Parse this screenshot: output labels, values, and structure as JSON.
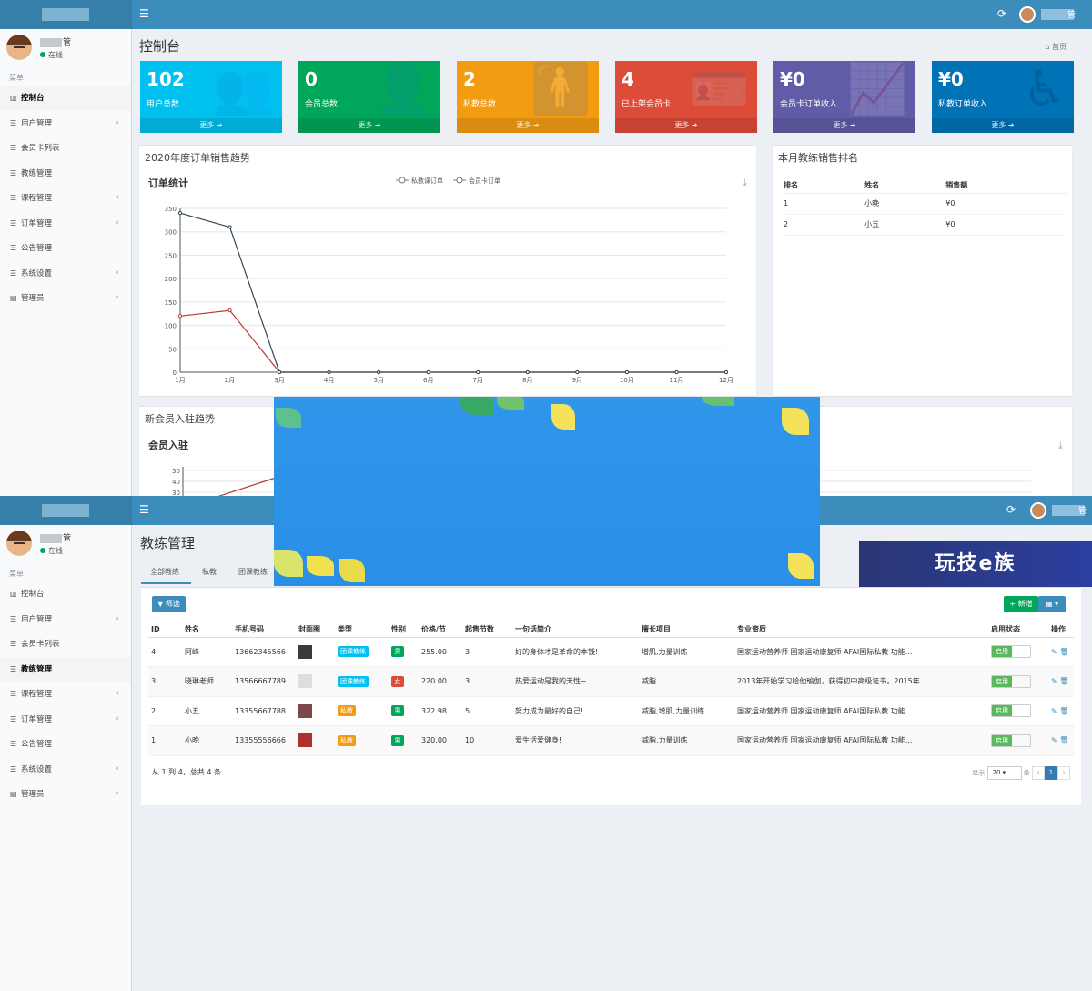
{
  "top": {
    "header": {
      "menu_icon": "hamburger-icon",
      "refresh_icon": "refresh-icon",
      "user_suffix": "管"
    },
    "sidebar": {
      "user_suffix": "管",
      "status": "在线",
      "section": "菜单",
      "items": [
        {
          "label": "控制台",
          "icon": "bar-chart-icon",
          "chevron": false,
          "active": true
        },
        {
          "label": "用户管理",
          "icon": "list-icon",
          "chevron": true
        },
        {
          "label": "会员卡列表",
          "icon": "list-icon",
          "chevron": false
        },
        {
          "label": "教练管理",
          "icon": "list-icon",
          "chevron": false
        },
        {
          "label": "课程管理",
          "icon": "list-icon",
          "chevron": true
        },
        {
          "label": "订单管理",
          "icon": "list-icon",
          "chevron": true
        },
        {
          "label": "公告管理",
          "icon": "list-icon",
          "chevron": false
        },
        {
          "label": "系统设置",
          "icon": "list-icon",
          "chevron": true
        },
        {
          "label": "管理员",
          "icon": "table-icon",
          "chevron": true
        }
      ]
    },
    "title": "控制台",
    "breadcrumb": "首页",
    "info_boxes": [
      {
        "value": "102",
        "label": "用户总数",
        "more": "更多",
        "color": "#00c0ef",
        "icon": "users-icon"
      },
      {
        "value": "0",
        "label": "会员总数",
        "more": "更多",
        "color": "#00a65a",
        "icon": "user-plus-icon"
      },
      {
        "value": "2",
        "label": "私教总数",
        "more": "更多",
        "color": "#f39c12",
        "icon": "person-icon"
      },
      {
        "value": "4",
        "label": "已上架会员卡",
        "more": "更多",
        "color": "#dd4b39",
        "icon": "id-card-icon"
      },
      {
        "value": "¥0",
        "label": "会员卡订单收入",
        "more": "更多",
        "color": "#605ca8",
        "icon": "area-chart-icon"
      },
      {
        "value": "¥0",
        "label": "私教订单收入",
        "more": "更多",
        "color": "#0073b7",
        "icon": "accessibility-icon"
      }
    ],
    "order_panel": {
      "title": "2020年度订单销售趋势",
      "subtitle": "订单统计"
    },
    "rank_panel": {
      "title": "本月教练销售排名",
      "headers": [
        "排名",
        "姓名",
        "销售额"
      ],
      "rows": [
        [
          "1",
          "小晚",
          "¥0"
        ],
        [
          "2",
          "小五",
          "¥0"
        ]
      ]
    },
    "member_panel": {
      "title": "新会员入驻趋势",
      "subtitle": "会员入驻"
    }
  },
  "chart_data": [
    {
      "type": "line",
      "title": "订单统计",
      "categories": [
        "1月",
        "2月",
        "3月",
        "4月",
        "5月",
        "6月",
        "7月",
        "8月",
        "9月",
        "10月",
        "11月",
        "12月"
      ],
      "series": [
        {
          "name": "私教课订单",
          "color": "#c23531",
          "values": [
            120,
            132,
            0,
            0,
            0,
            0,
            0,
            0,
            0,
            0,
            0,
            0
          ]
        },
        {
          "name": "会员卡订单",
          "color": "#2f4554",
          "values": [
            340,
            310,
            0,
            0,
            0,
            0,
            0,
            0,
            0,
            0,
            0,
            0
          ]
        }
      ],
      "yticks": [
        0,
        50,
        100,
        150,
        200,
        250,
        300,
        350
      ],
      "ylim": [
        0,
        350
      ],
      "legend": "top-center"
    },
    {
      "type": "line",
      "title": "会员入驻",
      "yticks": [
        30,
        40,
        50
      ],
      "partially_visible": true
    }
  ],
  "bottom": {
    "header": {
      "menu_icon": "hamburger-icon",
      "refresh_icon": "refresh-icon",
      "user_suffix": "管"
    },
    "title": "教练管理",
    "tabs": [
      "全部教练",
      "私教",
      "团课教练"
    ],
    "toolbar": {
      "filter": "筛选",
      "add": "+ 新增",
      "columns_icon": "grid-icon"
    },
    "table": {
      "headers": [
        "ID",
        "姓名",
        "手机号码",
        "封面图",
        "类型",
        "性别",
        "价格/节",
        "起售节数",
        "一句话简介",
        "擅长项目",
        "专业资质",
        "启用状态",
        "操作"
      ],
      "rows": [
        {
          "id": "4",
          "name": "阿峰",
          "phone": "13662345566",
          "type": "团课教练",
          "type_kind": "team",
          "gender": "男",
          "gender_kind": "m",
          "price": "255.00",
          "min": "3",
          "intro": "好的身体才是革命的本钱!",
          "skills": "增肌,力量训练",
          "cert": "国家运动营养师 国家运动康复师 AFAI国际私教 功能...",
          "status": "启用",
          "thumb": "#3a3a3a"
        },
        {
          "id": "3",
          "name": "晓琳老师",
          "phone": "13566667789",
          "type": "团课教练",
          "type_kind": "team",
          "gender": "女",
          "gender_kind": "f",
          "price": "220.00",
          "min": "3",
          "intro": "热爱运动是我的天性~",
          "skills": "减脂",
          "cert": "2013年开始学习哈他瑜伽，获得初中高级证书。2015年...",
          "status": "启用",
          "thumb": "#dddddd"
        },
        {
          "id": "2",
          "name": "小五",
          "phone": "13355667788",
          "type": "私教",
          "type_kind": "priv",
          "gender": "男",
          "gender_kind": "m",
          "price": "322.98",
          "min": "5",
          "intro": "努力成为最好的自己!",
          "skills": "减脂,增肌,力量训练",
          "cert": "国家运动营养师 国家运动康复师 AFAI国际私教 功能...",
          "status": "启用",
          "thumb": "#7a4a4a"
        },
        {
          "id": "1",
          "name": "小晚",
          "phone": "13355556666",
          "type": "私教",
          "type_kind": "priv",
          "gender": "男",
          "gender_kind": "m",
          "price": "320.00",
          "min": "10",
          "intro": "爱生活爱健身!",
          "skills": "减脂,力量训练",
          "cert": "国家运动营养师 国家运动康复师 AFAI国际私教 功能...",
          "status": "启用",
          "thumb": "#b03030"
        }
      ],
      "summary": "从 1 到 4，总共 4 条",
      "page_size_label": "显示",
      "page_size": "20",
      "page_unit": "条",
      "current_page": "1"
    }
  },
  "watermark": "玩技e族"
}
